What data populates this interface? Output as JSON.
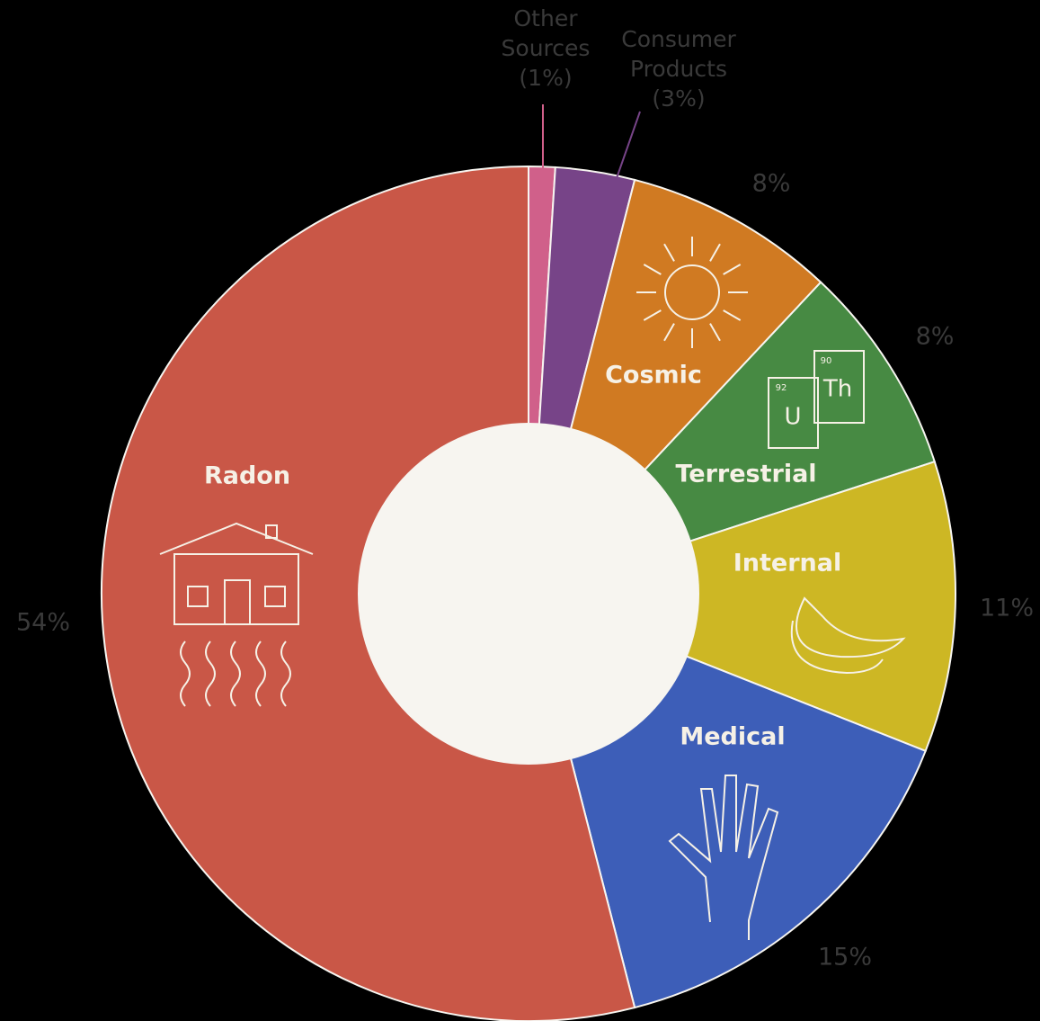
{
  "chart_data": {
    "type": "donut",
    "categories": [
      "Other Sources",
      "Consumer Products",
      "Cosmic",
      "Terrestrial",
      "Internal",
      "Medical",
      "Radon"
    ],
    "values": [
      1,
      3,
      8,
      8,
      11,
      15,
      54
    ],
    "value_labels": [
      "(1%)",
      "(3%)",
      "8%",
      "8%",
      "11%",
      "15%",
      "54%"
    ],
    "colors": [
      "#d0608a",
      "#774488",
      "#d07a22",
      "#478a43",
      "#cdb724",
      "#3d5eb8",
      "#c95747"
    ],
    "annotations": [
      "92",
      "U",
      "90",
      "Th"
    ]
  }
}
